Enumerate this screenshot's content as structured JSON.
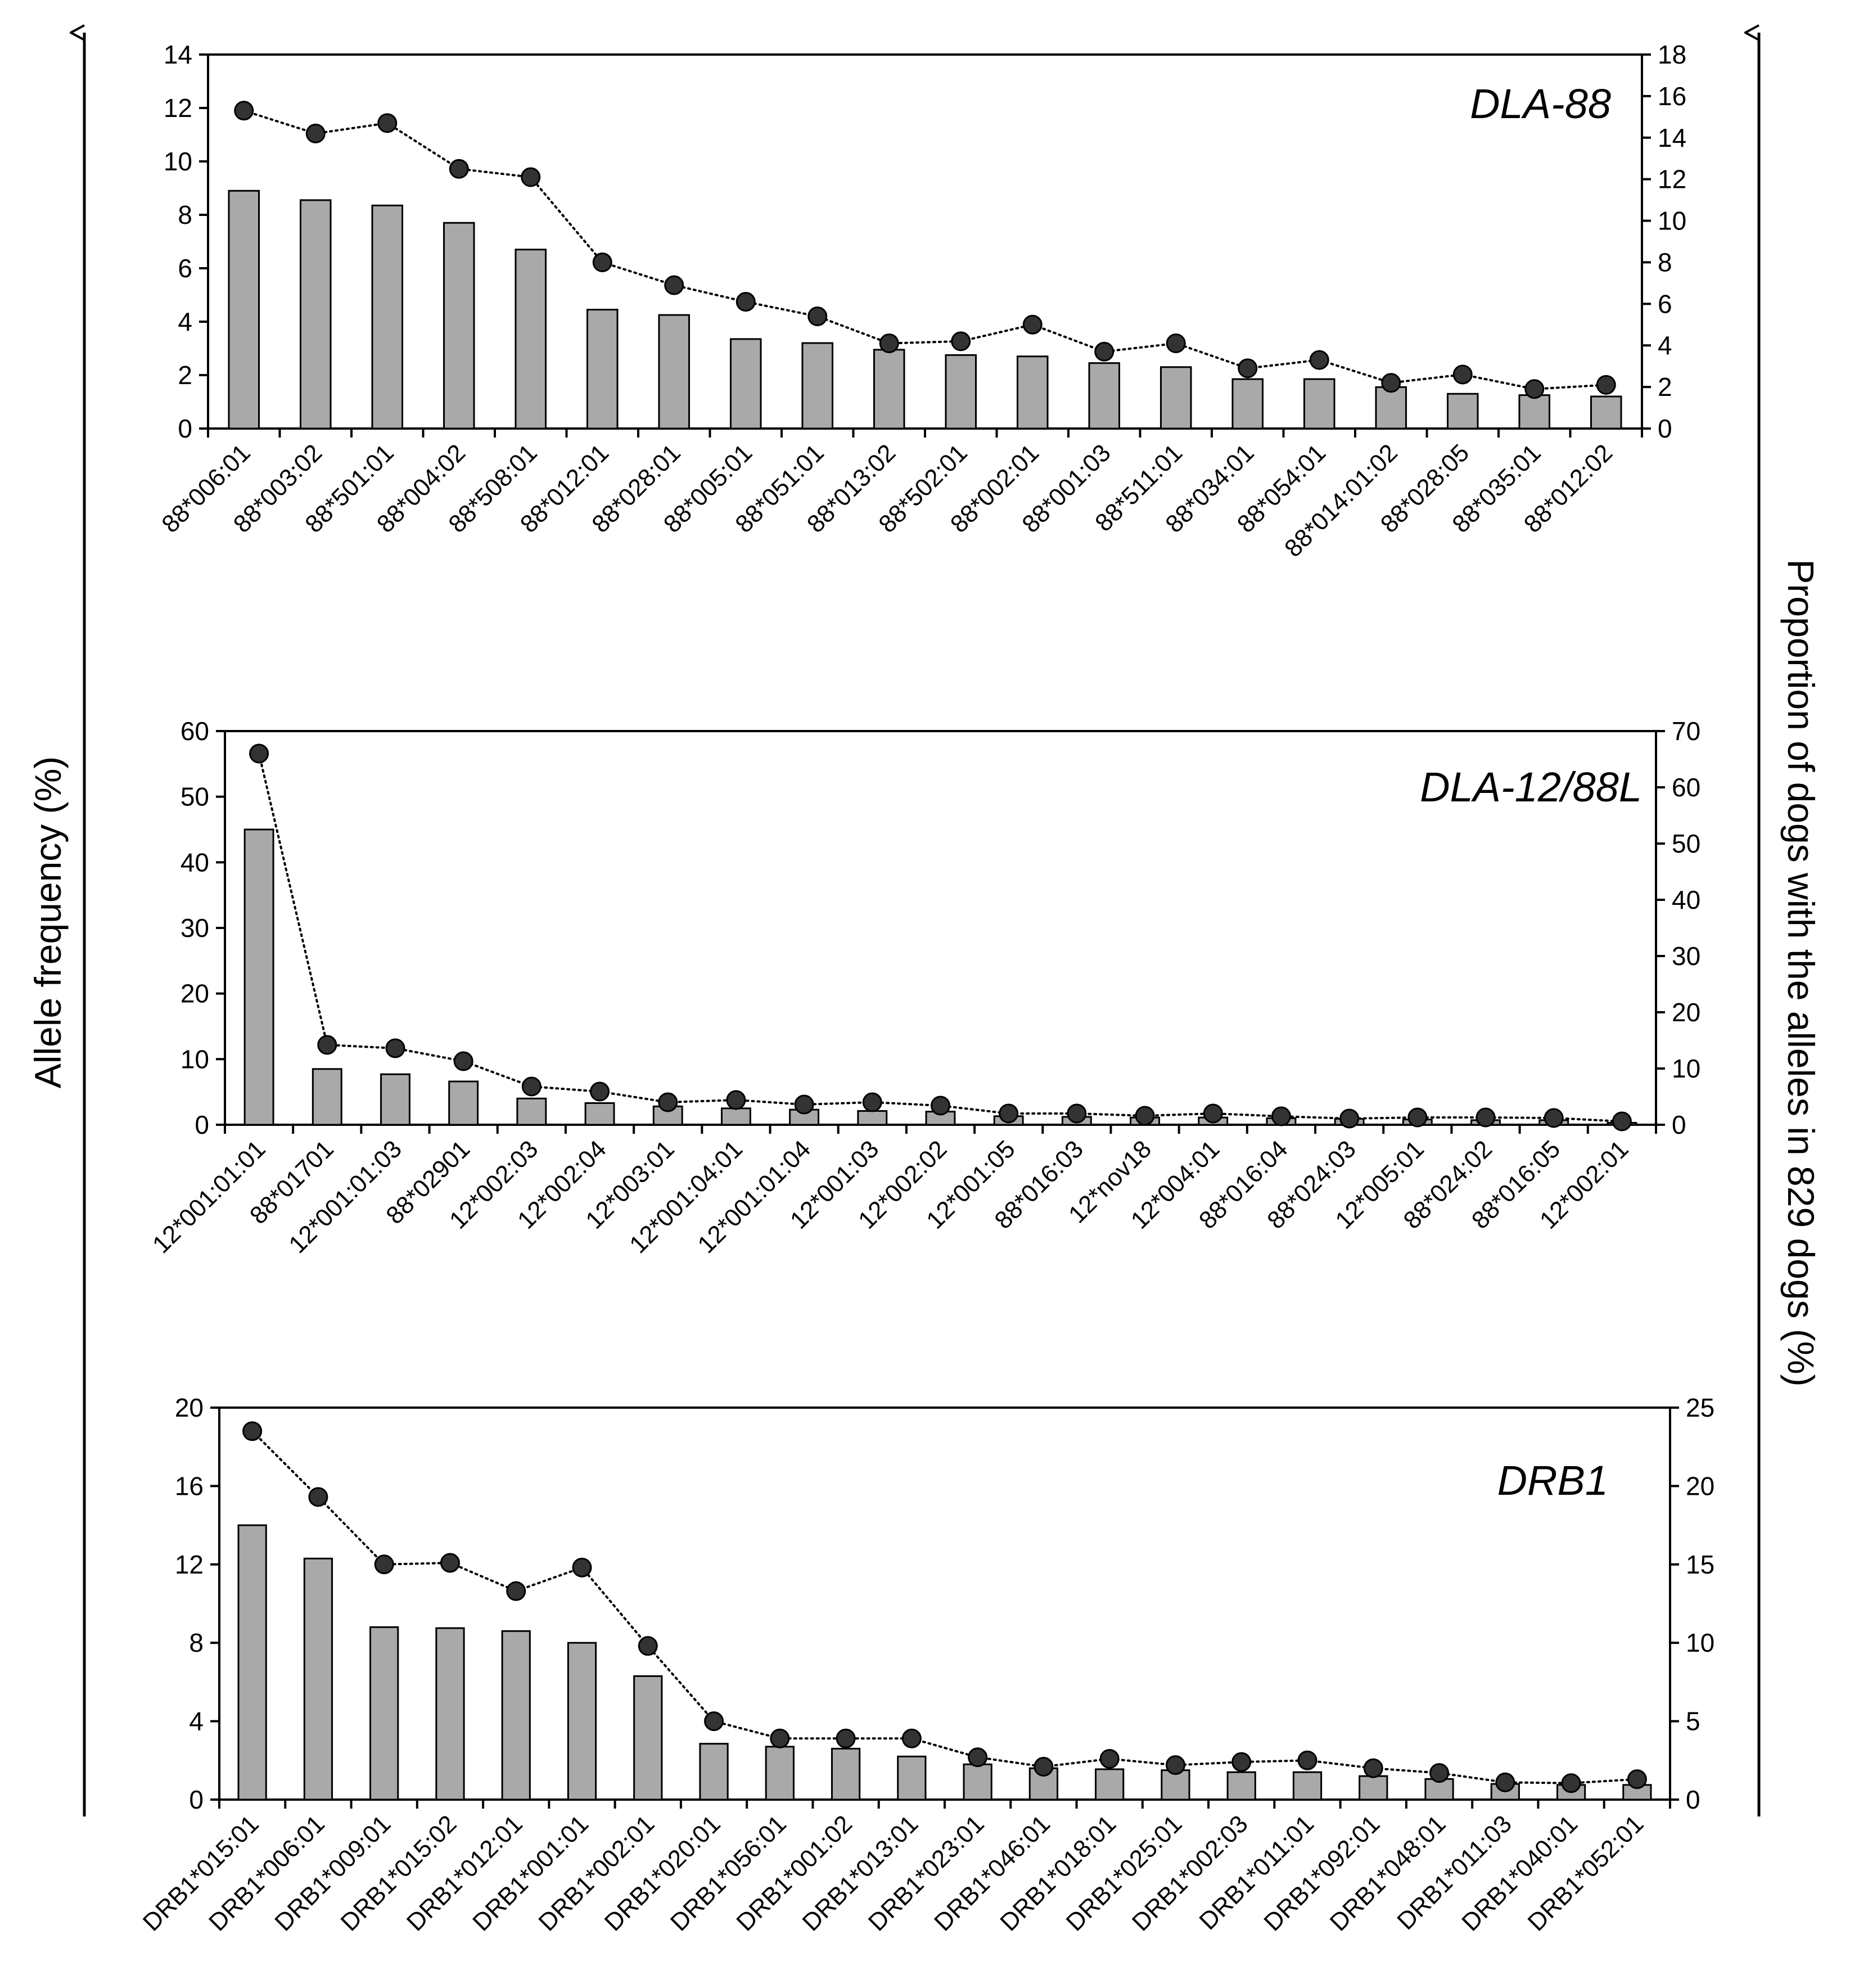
{
  "axis_titles": {
    "left": "Allele frequency (%)",
    "right": "Proportion of dogs with the alleles in 829 dogs  (%)"
  },
  "colors": {
    "bar_fill": "#a9a9a9",
    "bar_stroke": "#000000",
    "marker_fill": "#333333",
    "line": "#000000"
  },
  "chart_data": [
    {
      "type": "bar",
      "title": "DLA-88",
      "categories": [
        "88*006:01",
        "88*003:02",
        "88*501:01",
        "88*004:02",
        "88*508:01",
        "88*012:01",
        "88*028:01",
        "88*005:01",
        "88*051:01",
        "88*013:02",
        "88*502:01",
        "88*002:01",
        "88*001:03",
        "88*511:01",
        "88*034:01",
        "88*054:01",
        "88*014:01:02",
        "88*028:05",
        "88*035:01",
        "88*012:02"
      ],
      "series": [
        {
          "type": "bar",
          "axis": "left",
          "values": [
            8.9,
            8.55,
            8.35,
            7.7,
            6.7,
            4.45,
            4.25,
            3.35,
            3.2,
            2.95,
            2.75,
            2.7,
            2.45,
            2.3,
            1.85,
            1.85,
            1.55,
            1.3,
            1.25,
            1.2
          ]
        },
        {
          "type": "line",
          "axis": "right",
          "values": [
            15.3,
            14.2,
            14.7,
            12.5,
            12.1,
            8.0,
            6.9,
            6.1,
            5.4,
            4.1,
            4.2,
            5.0,
            3.7,
            4.1,
            2.9,
            3.3,
            2.2,
            2.6,
            1.9,
            2.1
          ]
        }
      ],
      "ylim_left": [
        0,
        14
      ],
      "yticks_left": [
        0,
        2,
        4,
        6,
        8,
        10,
        12,
        14
      ],
      "ylim_right": [
        0,
        18
      ],
      "yticks_right": [
        0,
        2,
        4,
        6,
        8,
        10,
        12,
        14,
        16,
        18
      ]
    },
    {
      "type": "bar",
      "title": "DLA-12/88L",
      "categories": [
        "12*001:01:01",
        "88*01701",
        "12*001:01:03",
        "88*02901",
        "12*002:03",
        "12*002:04",
        "12*003:01",
        "12*001:04:01",
        "12*001:01:04",
        "12*001:03",
        "12*002:02",
        "12*001:05",
        "88*016:03",
        "12*nov18",
        "12*004:01",
        "88*016:04",
        "88*024:03",
        "12*005:01",
        "88*024:02",
        "88*016:05",
        "12*002:01"
      ],
      "series": [
        {
          "type": "bar",
          "axis": "left",
          "values": [
            45,
            8.5,
            7.7,
            6.6,
            4.0,
            3.3,
            2.8,
            2.5,
            2.3,
            2.1,
            2.0,
            1.3,
            1.2,
            1.1,
            1.1,
            1.0,
            0.9,
            0.8,
            0.7,
            0.7,
            0.3
          ]
        },
        {
          "type": "line",
          "axis": "right",
          "values": [
            66,
            14.2,
            13.6,
            11.3,
            6.8,
            5.9,
            4.0,
            4.4,
            3.6,
            4.0,
            3.4,
            2.0,
            2.0,
            1.6,
            2.0,
            1.5,
            1.1,
            1.3,
            1.3,
            1.2,
            0.6
          ]
        }
      ],
      "ylim_left": [
        0,
        60
      ],
      "yticks_left": [
        0,
        10,
        20,
        30,
        40,
        50,
        60
      ],
      "ylim_right": [
        0,
        70
      ],
      "yticks_right": [
        0,
        10,
        20,
        30,
        40,
        50,
        60,
        70
      ]
    },
    {
      "type": "bar",
      "title": "DRB1",
      "categories": [
        "DRB1*015:01",
        "DRB1*006:01",
        "DRB1*009:01",
        "DRB1*015:02",
        "DRB1*012:01",
        "DRB1*001:01",
        "DRB1*002:01",
        "DRB1*020:01",
        "DRB1*056:01",
        "DRB1*001:02",
        "DRB1*013:01",
        "DRB1*023:01",
        "DRB1*046:01",
        "DRB1*018:01",
        "DRB1*025:01",
        "DRB1*002:03",
        "DRB1*011:01",
        "DRB1*092:01",
        "DRB1*048:01",
        "DRB1*011:03",
        "DRB1*040:01",
        "DRB1*052:01"
      ],
      "series": [
        {
          "type": "bar",
          "axis": "left",
          "values": [
            14.0,
            12.3,
            8.8,
            8.75,
            8.6,
            8.0,
            6.3,
            2.85,
            2.7,
            2.6,
            2.2,
            1.8,
            1.6,
            1.55,
            1.5,
            1.4,
            1.4,
            1.2,
            1.05,
            0.8,
            0.75,
            0.75
          ]
        },
        {
          "type": "line",
          "axis": "right",
          "values": [
            23.5,
            19.3,
            15.0,
            15.1,
            13.3,
            14.8,
            9.8,
            5.0,
            3.9,
            3.9,
            3.9,
            2.7,
            2.1,
            2.6,
            2.2,
            2.4,
            2.5,
            2.0,
            1.7,
            1.1,
            1.05,
            1.3
          ]
        }
      ],
      "ylim_left": [
        0,
        20
      ],
      "yticks_left": [
        0,
        4,
        8,
        12,
        16,
        20
      ],
      "ylim_right": [
        0,
        25
      ],
      "yticks_right": [
        0,
        5,
        10,
        15,
        20,
        25
      ]
    }
  ]
}
